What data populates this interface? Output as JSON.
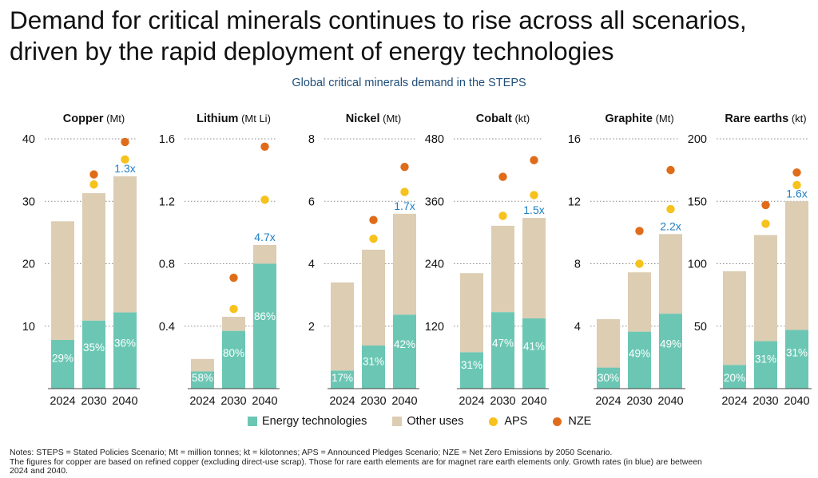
{
  "headline": {
    "line1": "Demand for critical minerals continues to rise across all scenarios,",
    "line2": "driven by the rapid deployment of energy technologies"
  },
  "subtitle": "Global critical minerals demand in the STEPS",
  "colors": {
    "energy": "#6bc7b4",
    "other": "#dccdb3",
    "aps": "#f6c21b",
    "nze": "#e06c1a",
    "growth_label": "#1f7ec2",
    "grid": "#8a8a8a"
  },
  "legend": {
    "energy": "Energy technologies",
    "other": "Other uses",
    "aps": "APS",
    "nze": "NZE"
  },
  "chart_data": [
    {
      "type": "bar",
      "stacked": true,
      "title": "Copper",
      "unit": "(Mt)",
      "categories": [
        "2024",
        "2030",
        "2040"
      ],
      "ylim": [
        0,
        40
      ],
      "yticks": [
        10,
        20,
        30,
        40
      ],
      "ytick_labels": [
        "10",
        "20",
        "30",
        "40"
      ],
      "grid": true,
      "series": [
        {
          "name": "Energy technologies",
          "values": [
            7.8,
            10.9,
            12.2
          ]
        },
        {
          "name": "Other uses",
          "values": [
            19.0,
            20.4,
            21.8
          ]
        }
      ],
      "aps": [
        null,
        32.7,
        36.7
      ],
      "nze": [
        null,
        34.3,
        39.5
      ],
      "share_labels": [
        "29%",
        "35%",
        "36%"
      ],
      "growth_label": "1.3x"
    },
    {
      "type": "bar",
      "stacked": true,
      "title": "Lithium",
      "unit": "(Mt Li)",
      "categories": [
        "2024",
        "2030",
        "2040"
      ],
      "ylim": [
        0,
        1.6
      ],
      "yticks": [
        0.4,
        0.8,
        1.2,
        1.6
      ],
      "ytick_labels": [
        "0.4",
        "0.8",
        "1.2",
        "1.6"
      ],
      "grid": true,
      "series": [
        {
          "name": "Energy technologies",
          "values": [
            0.11,
            0.37,
            0.8
          ]
        },
        {
          "name": "Other uses",
          "values": [
            0.08,
            0.09,
            0.12
          ]
        }
      ],
      "aps": [
        null,
        0.51,
        1.21
      ],
      "nze": [
        null,
        0.71,
        1.55
      ],
      "share_labels": [
        "58%",
        "80%",
        "86%"
      ],
      "growth_label": "4.7x"
    },
    {
      "type": "bar",
      "stacked": true,
      "title": "Nickel",
      "unit": "(Mt)",
      "categories": [
        "2024",
        "2030",
        "2040"
      ],
      "ylim": [
        0,
        8
      ],
      "yticks": [
        2,
        4,
        6,
        8
      ],
      "ytick_labels": [
        "2",
        "4",
        "6",
        "8"
      ],
      "grid": true,
      "series": [
        {
          "name": "Energy technologies",
          "values": [
            0.58,
            1.38,
            2.37
          ]
        },
        {
          "name": "Other uses",
          "values": [
            2.82,
            3.07,
            3.23
          ]
        }
      ],
      "aps": [
        null,
        4.8,
        6.3
      ],
      "nze": [
        null,
        5.4,
        7.1
      ],
      "share_labels": [
        "17%",
        "31%",
        "42%"
      ],
      "growth_label": "1.7x"
    },
    {
      "type": "bar",
      "stacked": true,
      "title": "Cobalt",
      "unit": "(kt)",
      "categories": [
        "2024",
        "2030",
        "2040"
      ],
      "ylim": [
        0,
        480
      ],
      "yticks": [
        120,
        240,
        360,
        480
      ],
      "ytick_labels": [
        "120",
        "240",
        "360",
        "480"
      ],
      "grid": true,
      "series": [
        {
          "name": "Energy technologies",
          "values": [
            70,
            147,
            135
          ]
        },
        {
          "name": "Other uses",
          "values": [
            152,
            166,
            193
          ]
        }
      ],
      "aps": [
        null,
        332,
        372
      ],
      "nze": [
        null,
        407,
        439
      ],
      "share_labels": [
        "31%",
        "47%",
        "41%"
      ],
      "growth_label": "1.5x"
    },
    {
      "type": "bar",
      "stacked": true,
      "title": "Graphite",
      "unit": "(Mt)",
      "categories": [
        "2024",
        "2030",
        "2040"
      ],
      "ylim": [
        0,
        16
      ],
      "yticks": [
        4,
        8,
        12,
        16
      ],
      "ytick_labels": [
        "4",
        "8",
        "12",
        "16"
      ],
      "grid": true,
      "series": [
        {
          "name": "Energy technologies",
          "values": [
            1.35,
            3.65,
            4.8
          ]
        },
        {
          "name": "Other uses",
          "values": [
            3.1,
            3.8,
            5.1
          ]
        }
      ],
      "aps": [
        null,
        8.0,
        11.5
      ],
      "nze": [
        null,
        10.1,
        14.0
      ],
      "share_labels": [
        "30%",
        "49%",
        "49%"
      ],
      "growth_label": "2.2x"
    },
    {
      "type": "bar",
      "stacked": true,
      "title": "Rare earths",
      "unit": "(kt)",
      "categories": [
        "2024",
        "2030",
        "2040"
      ],
      "ylim": [
        0,
        200
      ],
      "yticks": [
        50,
        100,
        150,
        200
      ],
      "ytick_labels": [
        "50",
        "100",
        "150",
        "200"
      ],
      "grid": true,
      "series": [
        {
          "name": "Energy technologies",
          "values": [
            19,
            38,
            47
          ]
        },
        {
          "name": "Other uses",
          "values": [
            75,
            85,
            103
          ]
        }
      ],
      "aps": [
        null,
        132,
        163
      ],
      "nze": [
        null,
        147,
        173
      ],
      "share_labels": [
        "20%",
        "31%",
        "31%"
      ],
      "growth_label": "1.6x"
    }
  ],
  "notes": {
    "line1": "Notes: STEPS = Stated Policies Scenario; Mt = million tonnes; kt = kilotonnes; APS = Announced Pledges Scenario; NZE = Net Zero Emissions by 2050 Scenario.",
    "line2": "The figures for copper are based on refined copper (excluding direct-use scrap). Those for rare earth elements are for magnet rare earth elements only. Growth rates (in blue) are between",
    "line3": "2024 and 2040."
  }
}
